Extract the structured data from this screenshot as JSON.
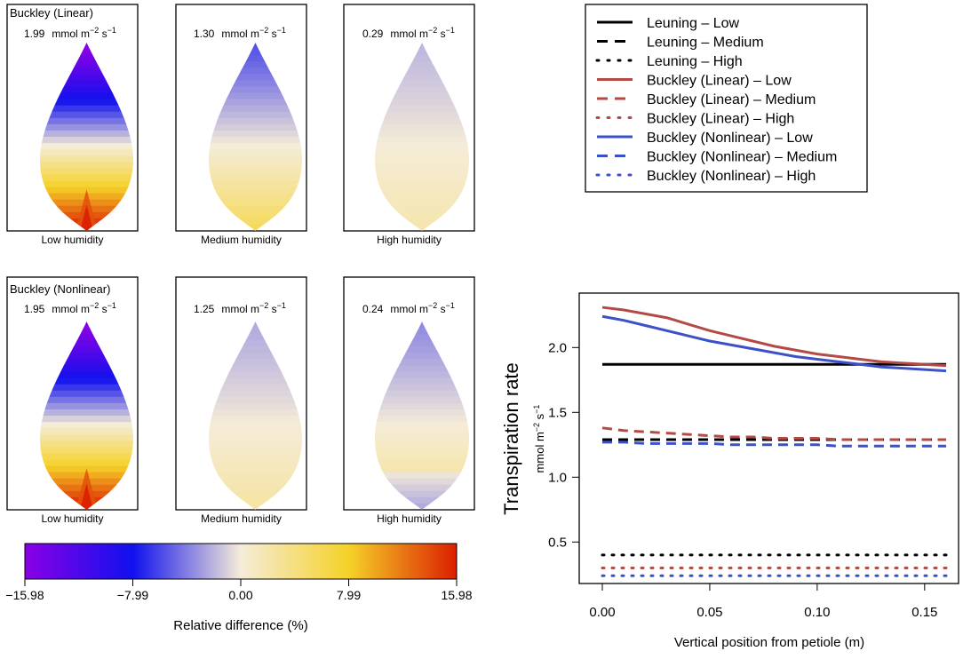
{
  "leaf_panels": {
    "unit_text": "mmol m",
    "unit_exp_a": "−2",
    "unit_s": " s",
    "unit_exp_b": "−1",
    "rows": [
      {
        "model_label": "Buckley (Linear)",
        "model_color": "#b44a46",
        "panels": [
          {
            "value": "1.99",
            "caption": "Low humidity",
            "scale": 1.0
          },
          {
            "value": "1.30",
            "caption": "Medium humidity",
            "scale": 0.35
          },
          {
            "value": "0.29",
            "caption": "High humidity",
            "scale": 0.12
          }
        ]
      },
      {
        "model_label": "Buckley (Nonlinear)",
        "model_color": "#3c50c8",
        "panels": [
          {
            "value": "1.95",
            "caption": "Low humidity",
            "scale": 1.0
          },
          {
            "value": "1.25",
            "caption": "Medium humidity",
            "scale": 0.15
          },
          {
            "value": "0.24",
            "caption": "High humidity",
            "scale": 0.22
          }
        ]
      }
    ]
  },
  "colorbar": {
    "label": "Relative difference (%)",
    "ticks": [
      "−15.98",
      "−7.99",
      "0.00",
      "7.99",
      "15.98"
    ],
    "min": -15.98,
    "max": 15.98,
    "colors": [
      "#8a00e6",
      "#1010ee",
      "#f5ecd8",
      "#f5d228",
      "#dc1e00"
    ]
  },
  "chart_data": {
    "type": "line",
    "title": "",
    "xlabel": "Vertical position from petiole (m)",
    "ylabel": "Transpiration rate",
    "ylabel_unit": "mmol m",
    "ylabel_exp_a": "−2",
    "ylabel_s": " s",
    "ylabel_exp_b": "−1",
    "xlim": [
      0,
      0.16
    ],
    "ylim": [
      0.18,
      2.42
    ],
    "x_ticks": [
      0.0,
      0.05,
      0.1,
      0.15
    ],
    "x_tick_labels": [
      "0.00",
      "0.05",
      "0.10",
      "0.15"
    ],
    "y_ticks": [
      0.5,
      1.0,
      1.5,
      2.0
    ],
    "y_tick_labels": [
      "0.5",
      "1.0",
      "1.5",
      "2.0"
    ],
    "x": [
      0.0,
      0.01,
      0.02,
      0.03,
      0.04,
      0.05,
      0.06,
      0.07,
      0.08,
      0.09,
      0.1,
      0.11,
      0.12,
      0.13,
      0.14,
      0.15,
      0.16
    ],
    "series": [
      {
        "name": "Leuning – Low",
        "color": "#000000",
        "style": "solid",
        "values": [
          1.87,
          1.87,
          1.87,
          1.87,
          1.87,
          1.87,
          1.87,
          1.87,
          1.87,
          1.87,
          1.87,
          1.87,
          1.87,
          1.87,
          1.87,
          1.87,
          1.87
        ]
      },
      {
        "name": "Leuning – Medium",
        "color": "#000000",
        "style": "dashed",
        "values": [
          1.29,
          1.29,
          1.29,
          1.29,
          1.29,
          1.29,
          1.29,
          1.29,
          1.29,
          1.29,
          1.29,
          1.29,
          1.29,
          1.29,
          1.29,
          1.29,
          1.29
        ]
      },
      {
        "name": "Leuning – High",
        "color": "#000000",
        "style": "dotted",
        "values": [
          0.4,
          0.4,
          0.4,
          0.4,
          0.4,
          0.4,
          0.4,
          0.4,
          0.4,
          0.4,
          0.4,
          0.4,
          0.4,
          0.4,
          0.4,
          0.4,
          0.4
        ]
      },
      {
        "name": "Buckley (Linear) – Low",
        "color": "#b44a46",
        "style": "solid",
        "values": [
          2.31,
          2.29,
          2.26,
          2.23,
          2.18,
          2.13,
          2.09,
          2.05,
          2.01,
          1.98,
          1.95,
          1.93,
          1.91,
          1.89,
          1.88,
          1.87,
          1.86
        ]
      },
      {
        "name": "Buckley (Linear) – Medium",
        "color": "#b44a46",
        "style": "dashed",
        "values": [
          1.38,
          1.36,
          1.35,
          1.34,
          1.33,
          1.32,
          1.31,
          1.31,
          1.3,
          1.3,
          1.3,
          1.29,
          1.29,
          1.29,
          1.29,
          1.29,
          1.29
        ]
      },
      {
        "name": "Buckley (Linear) – High",
        "color": "#b44a46",
        "style": "dotted",
        "values": [
          0.3,
          0.3,
          0.3,
          0.3,
          0.3,
          0.3,
          0.3,
          0.3,
          0.3,
          0.3,
          0.3,
          0.3,
          0.3,
          0.3,
          0.3,
          0.3,
          0.3
        ]
      },
      {
        "name": "Buckley (Nonlinear) – Low",
        "color": "#3c50c8",
        "style": "solid",
        "values": [
          2.24,
          2.21,
          2.17,
          2.13,
          2.09,
          2.05,
          2.02,
          1.99,
          1.96,
          1.93,
          1.91,
          1.89,
          1.87,
          1.85,
          1.84,
          1.83,
          1.82
        ]
      },
      {
        "name": "Buckley (Nonlinear) – Medium",
        "color": "#3c50c8",
        "style": "dashed",
        "values": [
          1.27,
          1.27,
          1.26,
          1.26,
          1.26,
          1.26,
          1.25,
          1.25,
          1.25,
          1.25,
          1.25,
          1.24,
          1.24,
          1.24,
          1.24,
          1.24,
          1.24
        ]
      },
      {
        "name": "Buckley (Nonlinear) – High",
        "color": "#3c50c8",
        "style": "dotted",
        "values": [
          0.24,
          0.24,
          0.24,
          0.24,
          0.24,
          0.24,
          0.24,
          0.24,
          0.24,
          0.24,
          0.24,
          0.24,
          0.24,
          0.24,
          0.24,
          0.24,
          0.24
        ]
      }
    ],
    "legend_position": "top-right"
  }
}
